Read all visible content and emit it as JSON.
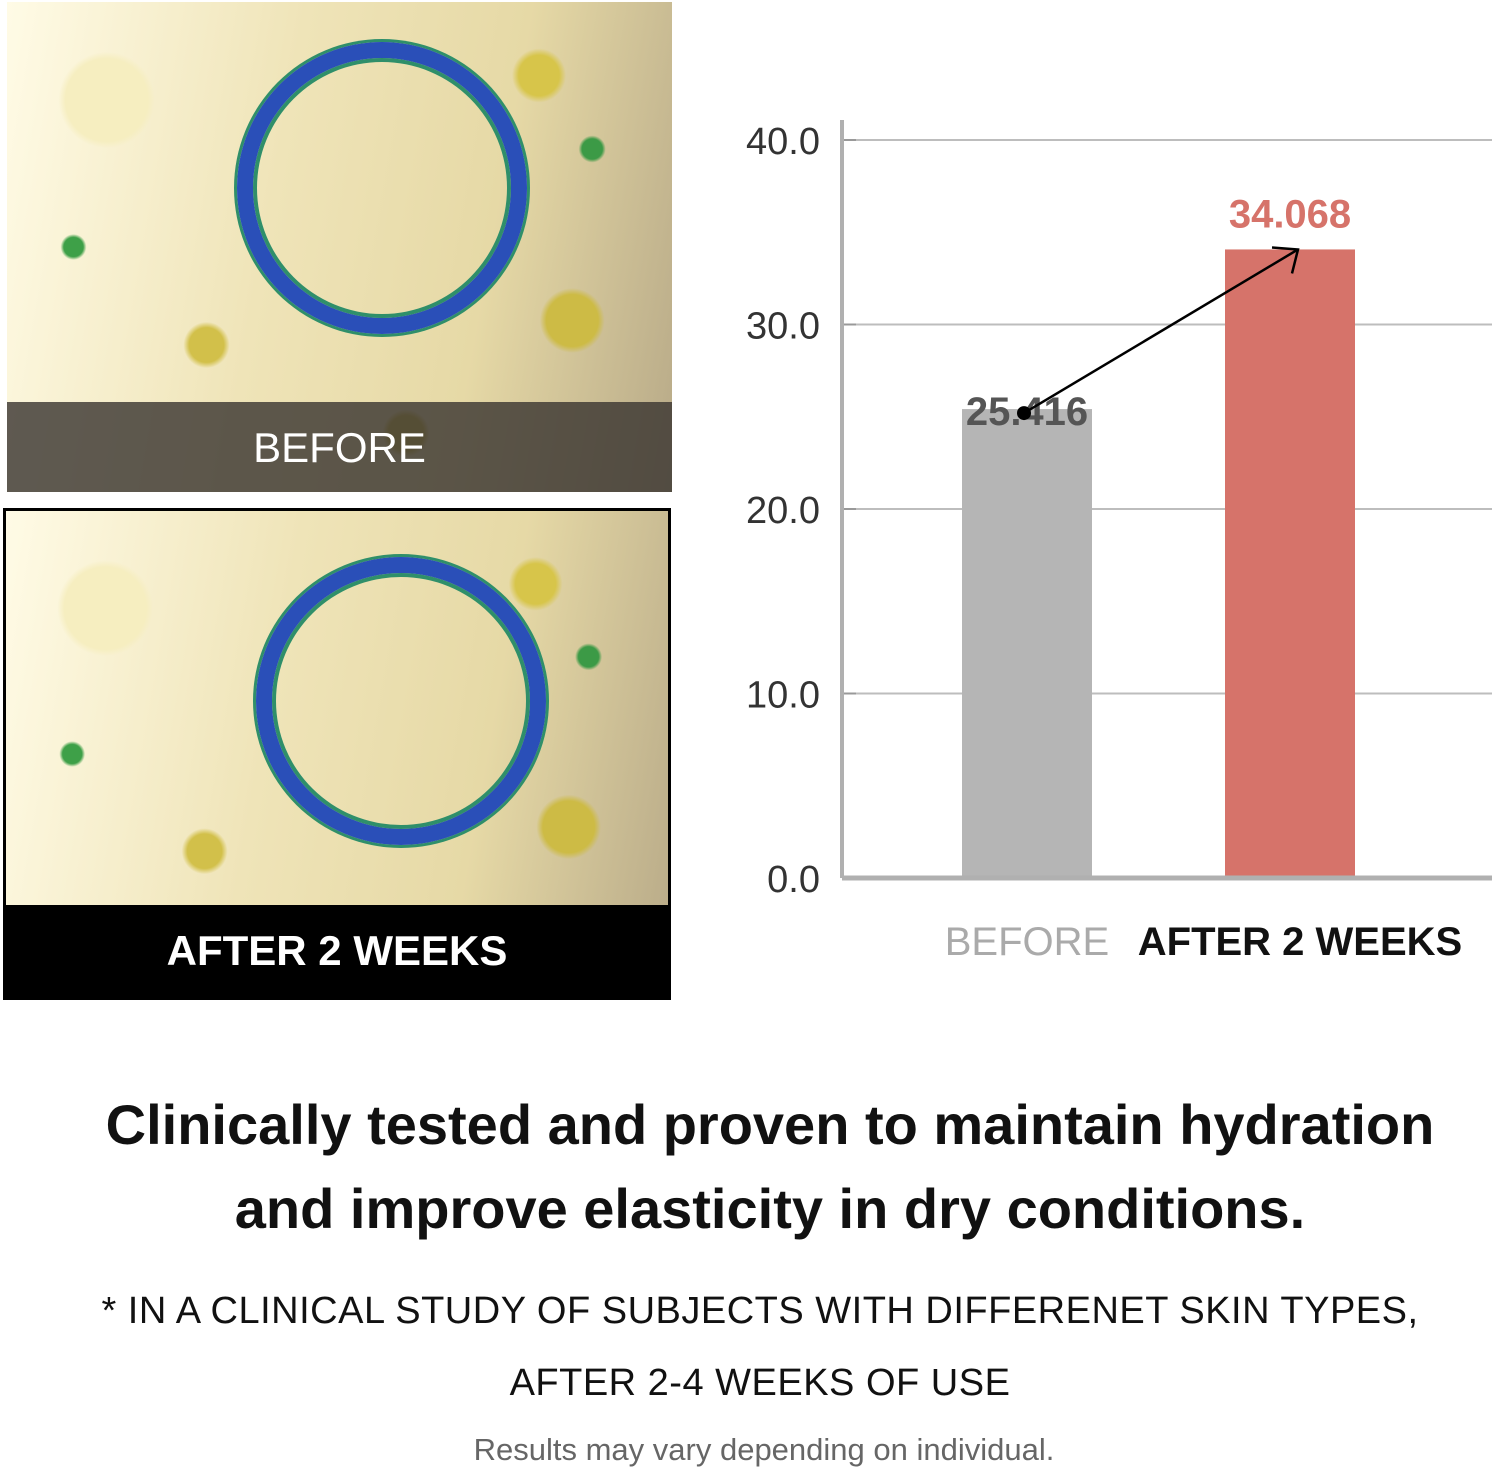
{
  "photos": {
    "before_label": "BEFORE",
    "after_label": "AFTER 2 WEEKS"
  },
  "chart_data": {
    "type": "bar",
    "categories": [
      "BEFORE",
      "AFTER 2 WEEKS"
    ],
    "values": [
      25.416,
      34.068
    ],
    "data_labels": [
      "25.416",
      "34.068"
    ],
    "ylim": [
      0,
      40
    ],
    "yticks": [
      "0.0",
      "10.0",
      "20.0",
      "30.0",
      "40.0"
    ],
    "grid": true,
    "annotation": "arrow from BEFORE bar top to AFTER 2 WEEKS bar top",
    "colors": {
      "before": "#b5b5b5",
      "after": "#d6736a",
      "before_label": "#555555",
      "after_label": "#d6736a",
      "before_category": "#aaaaaa",
      "after_category": "#111111"
    }
  },
  "text": {
    "headline_line1": "Clinically tested and proven to maintain hydration",
    "headline_line2": "and improve elasticity in dry conditions.",
    "note_line1": "* IN A CLINICAL STUDY OF SUBJECTS WITH DIFFERENET SKIN TYPES,",
    "note_line2": "AFTER 2-4 WEEKS OF USE",
    "disclaimer": "Results may vary depending on individual."
  }
}
